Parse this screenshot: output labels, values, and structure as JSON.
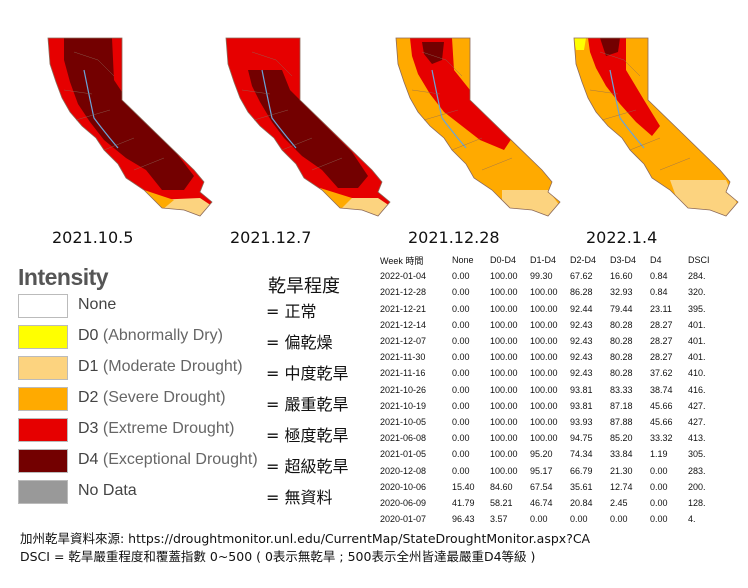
{
  "maps": [
    {
      "date": "2021.10.5"
    },
    {
      "date": "2021.12.7"
    },
    {
      "date": "2021.12.28"
    },
    {
      "date": "2022.1.4"
    }
  ],
  "legend": {
    "title": "Intensity",
    "chinese_header": "乾旱程度",
    "items": [
      {
        "code": "None",
        "en": "",
        "cn": "= 正常",
        "color": "#ffffff"
      },
      {
        "code": "D0",
        "en": "(Abnormally Dry)",
        "cn": "= 偏乾燥",
        "color": "#ffff00"
      },
      {
        "code": "D1",
        "en": "(Moderate Drought)",
        "cn": "= 中度乾旱",
        "color": "#fcd37f"
      },
      {
        "code": "D2",
        "en": "(Severe Drought)",
        "cn": "= 嚴重乾旱",
        "color": "#ffaa00"
      },
      {
        "code": "D3",
        "en": "(Extreme Drought)",
        "cn": "= 極度乾旱",
        "color": "#e60000"
      },
      {
        "code": "D4",
        "en": "(Exceptional Drought)",
        "cn": "= 超級乾旱",
        "color": "#730000"
      },
      {
        "code": "No Data",
        "en": "",
        "cn": "= 無資料",
        "color": "#999999"
      }
    ]
  },
  "table": {
    "headers": [
      "Week 時間",
      "None",
      "D0-D4",
      "D1-D4",
      "D2-D4",
      "D3-D4",
      "D4",
      "DSCI"
    ],
    "rows": [
      [
        "2022-01-04",
        "0.00",
        "100.00",
        "99.30",
        "67.62",
        "16.60",
        "0.84",
        "284."
      ],
      [
        "2021-12-28",
        "0.00",
        "100.00",
        "100.00",
        "86.28",
        "32.93",
        "0.84",
        "320."
      ],
      [
        "2021-12-21",
        "0.00",
        "100.00",
        "100.00",
        "92.44",
        "79.44",
        "23.11",
        "395."
      ],
      [
        "2021-12-14",
        "0.00",
        "100.00",
        "100.00",
        "92.43",
        "80.28",
        "28.27",
        "401."
      ],
      [
        "2021-12-07",
        "0.00",
        "100.00",
        "100.00",
        "92.43",
        "80.28",
        "28.27",
        "401."
      ],
      [
        "2021-11-30",
        "0.00",
        "100.00",
        "100.00",
        "92.43",
        "80.28",
        "28.27",
        "401."
      ],
      [
        "2021-11-16",
        "0.00",
        "100.00",
        "100.00",
        "92.43",
        "80.28",
        "37.62",
        "410."
      ],
      [
        "2021-10-26",
        "0.00",
        "100.00",
        "100.00",
        "93.81",
        "83.33",
        "38.74",
        "416."
      ],
      [
        "2021-10-19",
        "0.00",
        "100.00",
        "100.00",
        "93.81",
        "87.18",
        "45.66",
        "427."
      ],
      [
        "2021-10-05",
        "0.00",
        "100.00",
        "100.00",
        "93.93",
        "87.88",
        "45.66",
        "427."
      ],
      [
        "2021-06-08",
        "0.00",
        "100.00",
        "100.00",
        "94.75",
        "85.20",
        "33.32",
        "413."
      ],
      [
        "2021-01-05",
        "0.00",
        "100.00",
        "95.20",
        "74.34",
        "33.84",
        "1.19",
        "305."
      ],
      [
        "2020-12-08",
        "0.00",
        "100.00",
        "95.17",
        "66.79",
        "21.30",
        "0.00",
        "283."
      ],
      [
        "2020-10-06",
        "15.40",
        "84.60",
        "67.54",
        "35.61",
        "12.74",
        "0.00",
        "200."
      ],
      [
        "2020-06-09",
        "41.79",
        "58.21",
        "46.74",
        "20.84",
        "2.45",
        "0.00",
        "128."
      ],
      [
        "2020-01-07",
        "96.43",
        "3.57",
        "0.00",
        "0.00",
        "0.00",
        "0.00",
        "4."
      ]
    ]
  },
  "footer": {
    "source": "加州乾旱資料來源: https://droughtmonitor.unl.edu/CurrentMap/StateDroughtMonitor.aspx?CA",
    "dsci_note": "DSCI = 乾旱嚴重程度和覆蓋指數 0~500 ( 0表示無乾旱 ; 500表示全州皆達最嚴重D4等級 )"
  },
  "colors": {
    "D0": "#ffff00",
    "D1": "#fcd37f",
    "D2": "#ffaa00",
    "D3": "#e60000",
    "D4": "#730000",
    "county_lines": "#8c6a5a",
    "water": "#6aa4d9"
  }
}
